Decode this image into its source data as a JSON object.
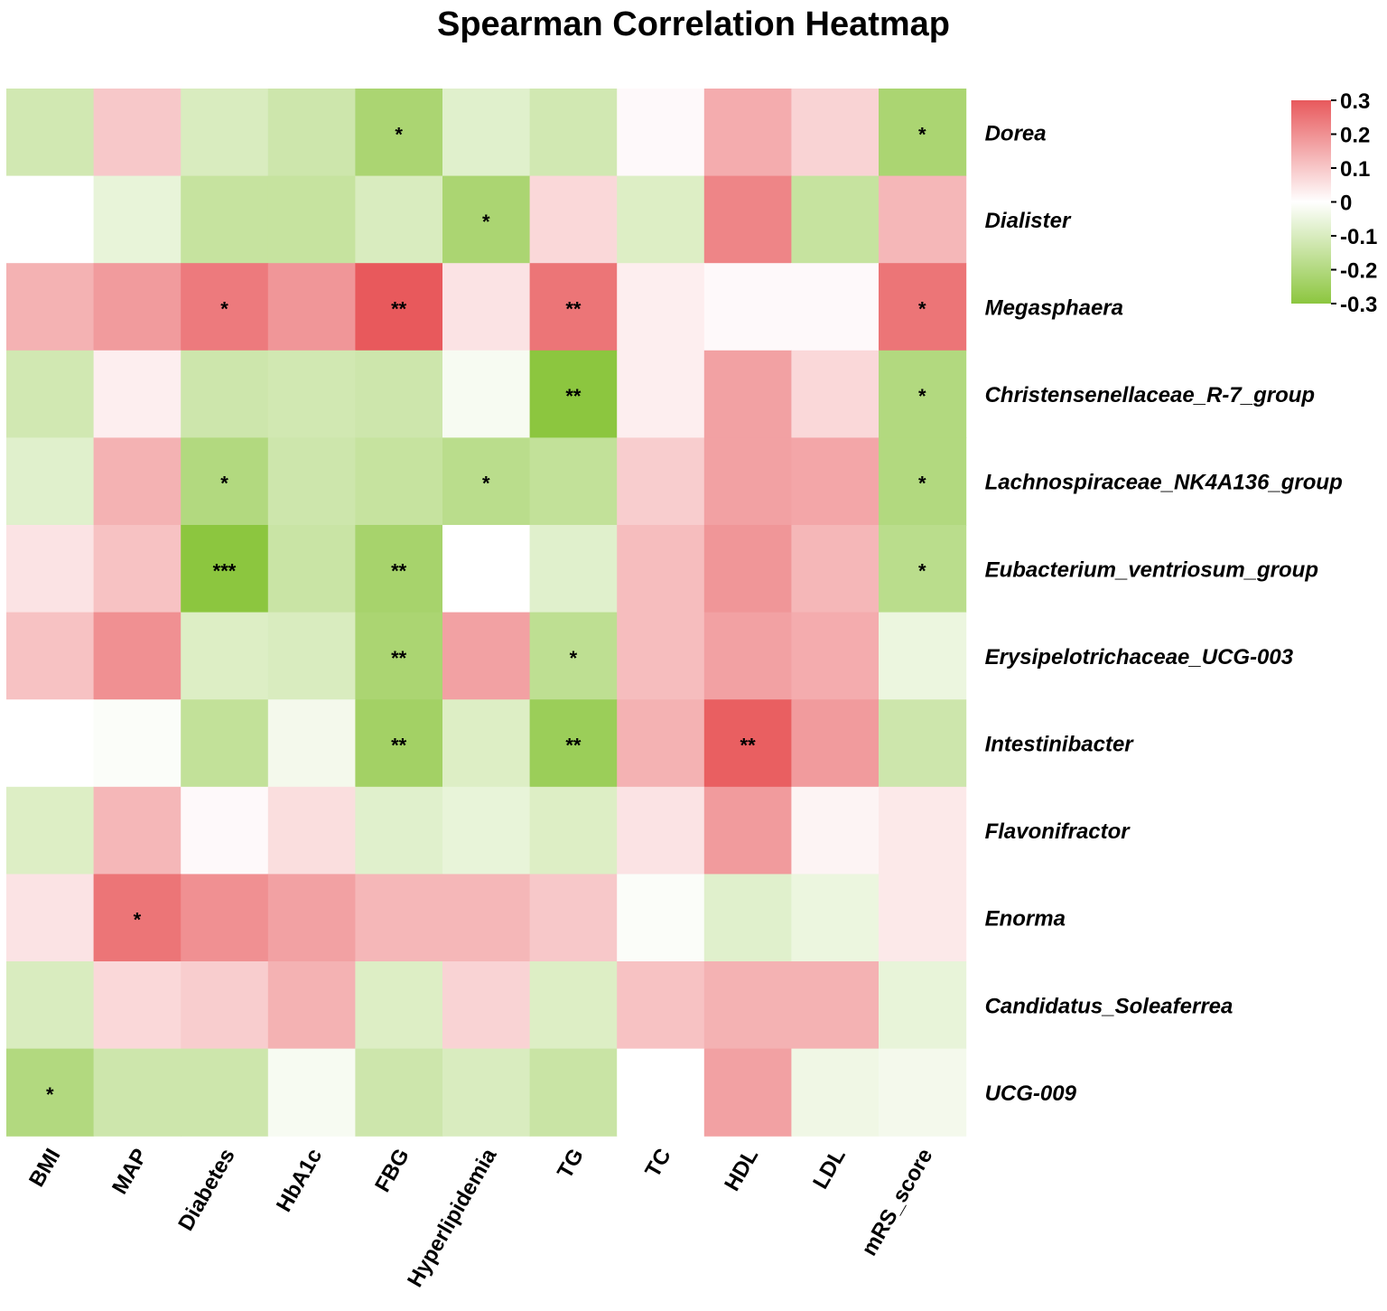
{
  "chart_data": {
    "type": "heatmap",
    "title": "Spearman Correlation Heatmap",
    "columns": [
      "BMI",
      "MAP",
      "Diabetes",
      "HbA1c",
      "FBG",
      "Hyperlipidemia",
      "TG",
      "TC",
      "HDL",
      "LDL",
      "mRS_score"
    ],
    "rows": [
      "Dorea",
      "Dialister",
      "Megasphaera",
      "Christensenellaceae_R-7_group",
      "Lachnospiraceae_NK4A136_group",
      "Eubacterium_ventriosum_group",
      "Erysipelotrichaceae_UCG-003",
      "Intestinibacter",
      "Flavonifractor",
      "Enorma",
      "Candidatus_Soleaferrea",
      "UCG-009"
    ],
    "values": [
      [
        -0.12,
        0.1,
        -0.1,
        -0.13,
        -0.22,
        -0.08,
        -0.12,
        0.01,
        0.15,
        0.08,
        -0.22
      ],
      [
        0.0,
        -0.06,
        -0.15,
        -0.15,
        -0.1,
        -0.22,
        0.07,
        -0.09,
        0.22,
        -0.15,
        0.13
      ],
      [
        0.14,
        0.18,
        0.24,
        0.19,
        0.3,
        0.05,
        0.25,
        0.03,
        0.01,
        0.01,
        0.25
      ],
      [
        -0.12,
        0.03,
        -0.13,
        -0.12,
        -0.13,
        -0.02,
        -0.3,
        0.03,
        0.17,
        0.07,
        -0.2
      ],
      [
        -0.08,
        0.14,
        -0.2,
        -0.13,
        -0.15,
        -0.18,
        -0.16,
        0.09,
        0.17,
        0.16,
        -0.2
      ],
      [
        0.05,
        0.11,
        -0.3,
        -0.14,
        -0.23,
        0.0,
        -0.08,
        0.12,
        0.19,
        0.13,
        -0.18
      ],
      [
        0.11,
        0.2,
        -0.09,
        -0.1,
        -0.22,
        0.17,
        -0.17,
        0.12,
        0.17,
        0.15,
        -0.05
      ],
      [
        0.0,
        -0.01,
        -0.16,
        -0.03,
        -0.24,
        -0.09,
        -0.26,
        0.14,
        0.29,
        0.18,
        -0.13
      ],
      [
        -0.09,
        0.13,
        0.01,
        0.06,
        -0.08,
        -0.06,
        -0.09,
        0.05,
        0.18,
        0.02,
        0.04
      ],
      [
        0.05,
        0.25,
        0.2,
        0.17,
        0.13,
        0.13,
        0.1,
        -0.01,
        -0.08,
        -0.05,
        0.04
      ],
      [
        -0.1,
        0.07,
        0.09,
        0.14,
        -0.09,
        0.08,
        -0.09,
        0.11,
        0.14,
        0.14,
        -0.06
      ],
      [
        -0.2,
        -0.13,
        -0.13,
        -0.02,
        -0.13,
        -0.1,
        -0.14,
        0.0,
        0.17,
        -0.04,
        -0.03
      ]
    ],
    "significance": [
      [
        "",
        "",
        "",
        "",
        "*",
        "",
        "",
        "",
        "",
        "",
        "*"
      ],
      [
        "",
        "",
        "",
        "",
        "",
        "*",
        "",
        "",
        "",
        "",
        ""
      ],
      [
        "",
        "",
        "*",
        "",
        "**",
        "",
        "**",
        "",
        "",
        "",
        "*"
      ],
      [
        "",
        "",
        "",
        "",
        "",
        "",
        "**",
        "",
        "",
        "",
        "*"
      ],
      [
        "",
        "",
        "*",
        "",
        "",
        "*",
        "",
        "",
        "",
        "",
        "*"
      ],
      [
        "",
        "",
        "***",
        "",
        "**",
        "",
        "",
        "",
        "",
        "",
        "*"
      ],
      [
        "",
        "",
        "",
        "",
        "**",
        "",
        "*",
        "",
        "",
        "",
        ""
      ],
      [
        "",
        "",
        "",
        "",
        "**",
        "",
        "**",
        "",
        "**",
        "",
        ""
      ],
      [
        "",
        "",
        "",
        "",
        "",
        "",
        "",
        "",
        "",
        "",
        ""
      ],
      [
        "",
        "*",
        "",
        "",
        "",
        "",
        "",
        "",
        "",
        "",
        ""
      ],
      [
        "",
        "",
        "",
        "",
        "",
        "",
        "",
        "",
        "",
        "",
        ""
      ],
      [
        "*",
        "",
        "",
        "",
        "",
        "",
        "",
        "",
        "",
        "",
        ""
      ]
    ],
    "color_range": [
      -0.3,
      0.3
    ],
    "color_low": "#8cc63f",
    "color_mid": "#ffffff",
    "color_high": "#e8595c",
    "legend": {
      "ticks": [
        0.3,
        0.2,
        0.1,
        0,
        -0.1,
        -0.2,
        -0.3
      ],
      "tick_labels": [
        "0.3",
        "0.2",
        "0.1",
        "0",
        "-0.1",
        "-0.2",
        "-0.3"
      ],
      "placement": "top-right"
    }
  }
}
